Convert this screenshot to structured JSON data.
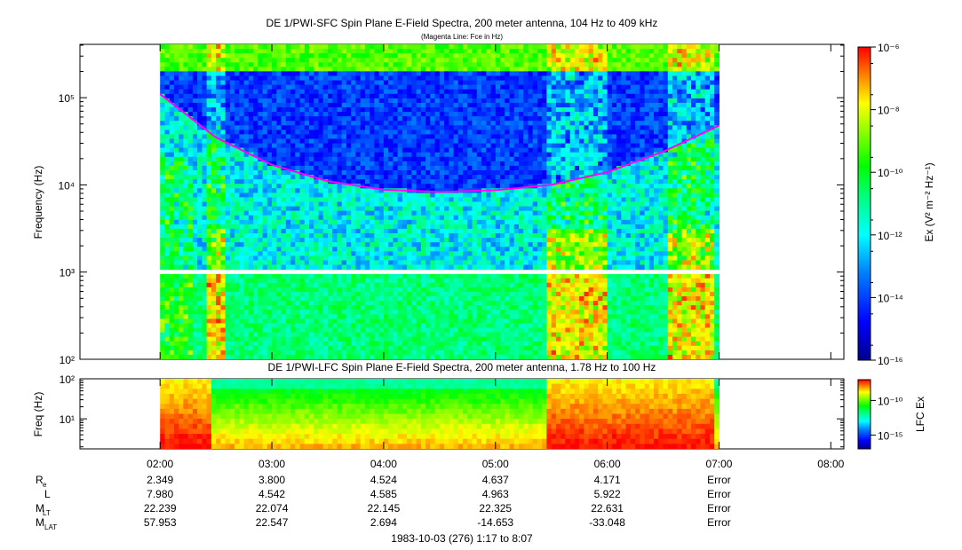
{
  "chart_data": [
    {
      "type": "heatmap",
      "title": "DE 1/PWI-SFC  Spin Plane E-Field Spectra, 200 meter antenna, 104 Hz to 409 kHz",
      "subtitle": "(Magenta Line: Fce in Hz)",
      "xlabel": "",
      "ylabel": "Frequency (Hz)",
      "y_scale": "log",
      "ylim": [
        100,
        409000
      ],
      "y_ticks": [
        "10^2",
        "10^3",
        "10^4",
        "10^5"
      ],
      "data_span": [
        "02:00",
        "07:00"
      ],
      "gap_band_hz": [
        950,
        1050
      ],
      "colorbar": {
        "label": "Ex (V^2 m^-2 Hz^-1)",
        "scale": "log",
        "range": [
          1e-16,
          1e-06
        ],
        "ticks": [
          "10^-6",
          "10^-8",
          "10^-10",
          "10^-12",
          "10^-14",
          "10^-16"
        ],
        "colormap": [
          "#00008c",
          "#0000ff",
          "#0080ff",
          "#00ffff",
          "#00ff80",
          "#00ff00",
          "#80ff00",
          "#ffff00",
          "#ff8000",
          "#ff0000"
        ]
      },
      "series": [
        {
          "name": "Fce",
          "color": "#ff00ff",
          "x": [
            "02:00",
            "02:30",
            "03:00",
            "03:30",
            "04:00",
            "04:30",
            "05:00",
            "05:30",
            "06:00",
            "06:30",
            "07:00"
          ],
          "y": [
            110000,
            35000,
            17000,
            11000,
            8800,
            8300,
            8700,
            10000,
            14000,
            24000,
            48000
          ]
        }
      ]
    },
    {
      "type": "heatmap",
      "title": "DE 1/PWI-LFC  Spin Plane E-Field Spectra, 200 meter antenna, 1.78 Hz to 100 Hz",
      "ylabel": "Freq (Hz)",
      "y_scale": "log",
      "ylim": [
        1.78,
        100
      ],
      "y_ticks": [
        "10^1",
        "10^2"
      ],
      "colorbar": {
        "label": "LFC Ex",
        "scale": "log",
        "range": [
          1e-17,
          1e-07
        ],
        "ticks": [
          "10^-10",
          "10^-15"
        ]
      }
    }
  ],
  "time_axis": {
    "ticks": [
      "02:00",
      "03:00",
      "04:00",
      "05:00",
      "06:00",
      "07:00",
      "08:00"
    ]
  },
  "ephemeris": {
    "rows": [
      {
        "label": "R",
        "sub": "e",
        "values": [
          "2.349",
          "3.800",
          "4.524",
          "4.637",
          "4.171",
          "Error"
        ]
      },
      {
        "label": "L",
        "sub": "",
        "values": [
          "7.980",
          "4.542",
          "4.585",
          "4.963",
          "5.922",
          "Error"
        ]
      },
      {
        "label": "M",
        "sub": "LT",
        "values": [
          "22.239",
          "22.074",
          "22.145",
          "22.325",
          "22.631",
          "Error"
        ]
      },
      {
        "label": "M",
        "sub": "LAT",
        "values": [
          "57.953",
          "22.547",
          "2.694",
          "-14.653",
          "-33.048",
          "Error"
        ]
      }
    ]
  },
  "date_range": "1983-10-03 (276) 1:17 to 8:07"
}
